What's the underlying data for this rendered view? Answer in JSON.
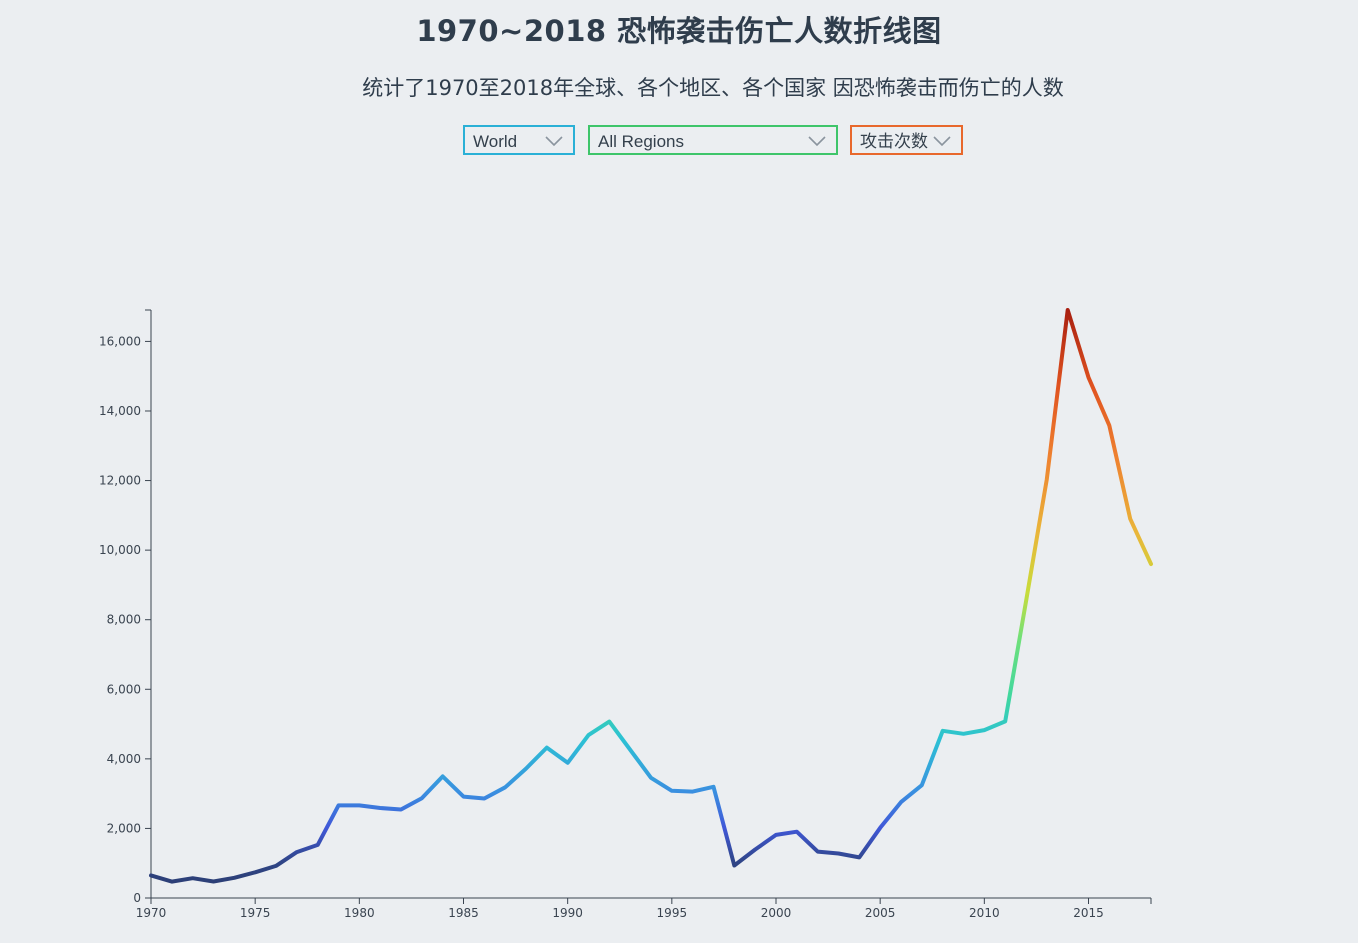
{
  "header": {
    "title": "1970~2018 恐怖袭击伤亡人数折线图",
    "subtitle": "统计了1970至2018年全球、各个地区、各个国家 因恐怖袭击而伤亡的人数"
  },
  "controls": {
    "country": "World",
    "region": "All Regions",
    "metric": "攻击次数"
  },
  "colors": {
    "country_border": "#2ab0d6",
    "region_border": "#3ec56a",
    "metric_border": "#e8682c"
  },
  "chart_data": {
    "type": "line",
    "x": [
      1970,
      1971,
      1972,
      1973,
      1974,
      1975,
      1976,
      1977,
      1978,
      1979,
      1980,
      1981,
      1982,
      1983,
      1984,
      1985,
      1986,
      1987,
      1988,
      1989,
      1990,
      1991,
      1992,
      1994,
      1995,
      1996,
      1997,
      1998,
      1999,
      2000,
      2001,
      2002,
      2003,
      2004,
      2005,
      2006,
      2007,
      2008,
      2009,
      2010,
      2011,
      2012,
      2013,
      2014,
      2015,
      2016,
      2017,
      2018
    ],
    "values": [
      651,
      471,
      568,
      473,
      581,
      740,
      923,
      1319,
      1526,
      2662,
      2662,
      2586,
      2544,
      2870,
      3495,
      2915,
      2860,
      3183,
      3721,
      4324,
      3887,
      4683,
      5071,
      3456,
      3081,
      3058,
      3197,
      934,
      1395,
      1814,
      1906,
      1333,
      1278,
      1166,
      2017,
      2758,
      3242,
      4805,
      4721,
      4826,
      5076,
      8522,
      12036,
      16903,
      14965,
      13587,
      10900,
      9600
    ],
    "title": "",
    "xlabel": "",
    "ylabel": "",
    "xlim": [
      1970,
      2018
    ],
    "ylim": [
      0,
      16903
    ],
    "x_ticks": [
      "1970",
      "1975",
      "1980",
      "1985",
      "1990",
      "1995",
      "2000",
      "2005",
      "2010",
      "2015"
    ],
    "y_ticks": [
      "0",
      "2,000",
      "4,000",
      "6,000",
      "8,000",
      "10,000",
      "12,000",
      "14,000",
      "16,000"
    ],
    "grid": false,
    "legend": "none"
  }
}
